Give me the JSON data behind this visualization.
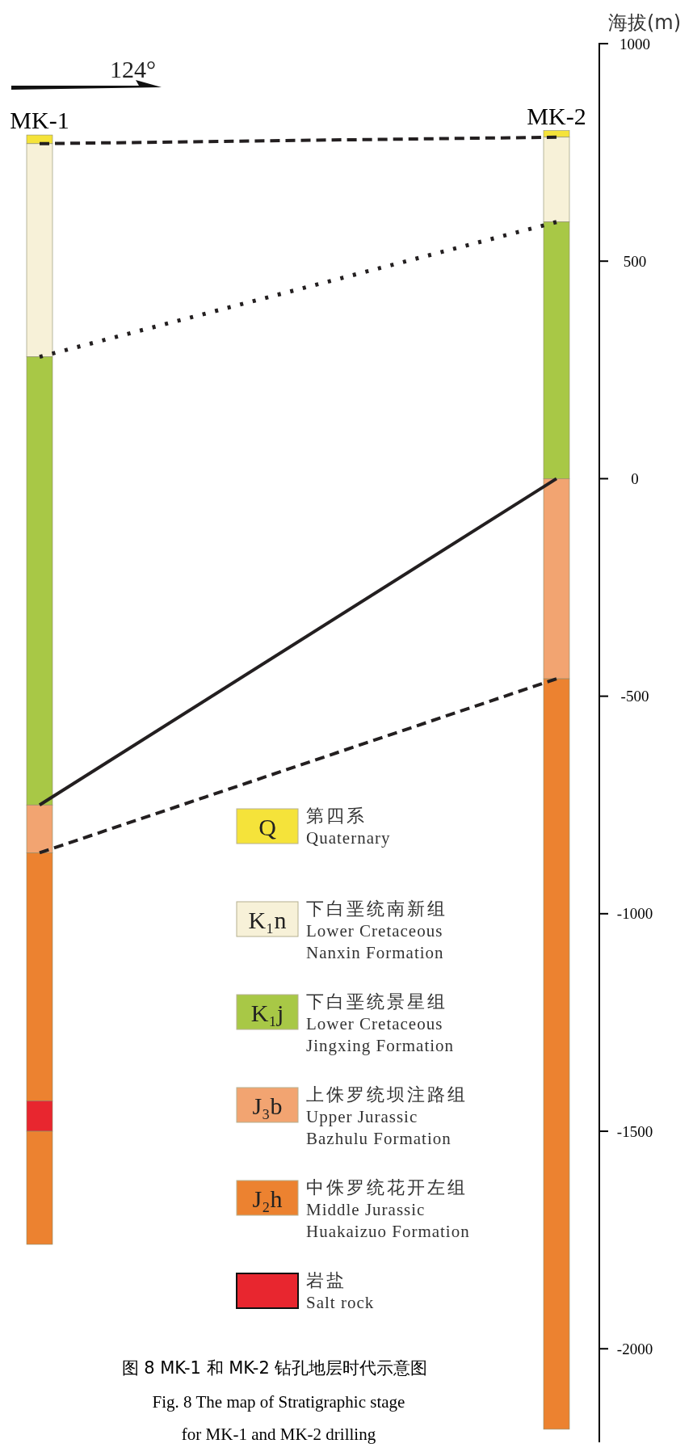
{
  "chart_data": {
    "type": "bar",
    "title": "图 8 MK-1 和 MK-2 钻孔地层时代示意图",
    "subtitle": "Fig. 8 The map of Stratigraphic stage\nfor MK-1 and MK-2 drilling",
    "ylabel": "海拔(m)",
    "annotations": [
      "124°",
      "Q",
      "K₁n",
      "K₁j",
      "J₃b",
      "J₂h"
    ],
    "categories": [
      "MK-1",
      "MK-2"
    ],
    "ylim": [
      -2215,
      1000
    ],
    "yticks": [
      1000,
      500,
      0,
      -500,
      -1000,
      -1500,
      -2000
    ],
    "legend": "bottom",
    "series": [
      {
        "name": "第四系\nQuaternary",
        "color": "#f5e33a",
        "base": [
          770,
          785
        ],
        "values": [
          20,
          15
        ]
      },
      {
        "name": "下白垩统南新组\nLower Cretaceous\nNanxin Formation",
        "color": "#f7f1d8",
        "base": [
          280,
          590
        ],
        "values": [
          490,
          195
        ]
      },
      {
        "name": "下白垩统景星组\nLower Cretaceous\nJingxing Formation",
        "color": "#a8c846",
        "base": [
          -750,
          0
        ],
        "values": [
          1030,
          590
        ]
      },
      {
        "name": "上侏罗统坝注路组\nUpper Jurassic\nBazhulu Formation",
        "color": "#f2a471",
        "base": [
          -860,
          -460
        ],
        "values": [
          110,
          460
        ]
      },
      {
        "name": "中侏罗统花开左组\nMiddle Jurassic\nHuakaizuo Formation",
        "color": "#ec8230",
        "base": [
          -1430,
          -2185
        ],
        "values": [
          570,
          1725
        ]
      },
      {
        "name": "岩盐\nSalt rock",
        "color": "#e8262f",
        "base": [
          -1500,
          null
        ],
        "values": [
          70,
          null
        ]
      },
      {
        "color": "#ec8230",
        "base": [
          -1760,
          null
        ],
        "values": [
          260,
          null
        ]
      },
      {
        "type": "line",
        "x": [
          "MK-1",
          "MK-2"
        ],
        "values": [
          770,
          785
        ],
        "color": "#231f20",
        "line_style": "dashed"
      },
      {
        "type": "line",
        "x": [
          "MK-1",
          "MK-2"
        ],
        "values": [
          280,
          590
        ],
        "color": "#231f20",
        "line_style": "dotted"
      },
      {
        "type": "line",
        "x": [
          "MK-1",
          "MK-2"
        ],
        "values": [
          -750,
          0
        ],
        "color": "#231f20",
        "line_style": "solid"
      },
      {
        "type": "line",
        "x": [
          "MK-1",
          "MK-2"
        ],
        "values": [
          -860,
          -460
        ],
        "color": "#231f20",
        "line_style": "dashed"
      }
    ]
  }
}
